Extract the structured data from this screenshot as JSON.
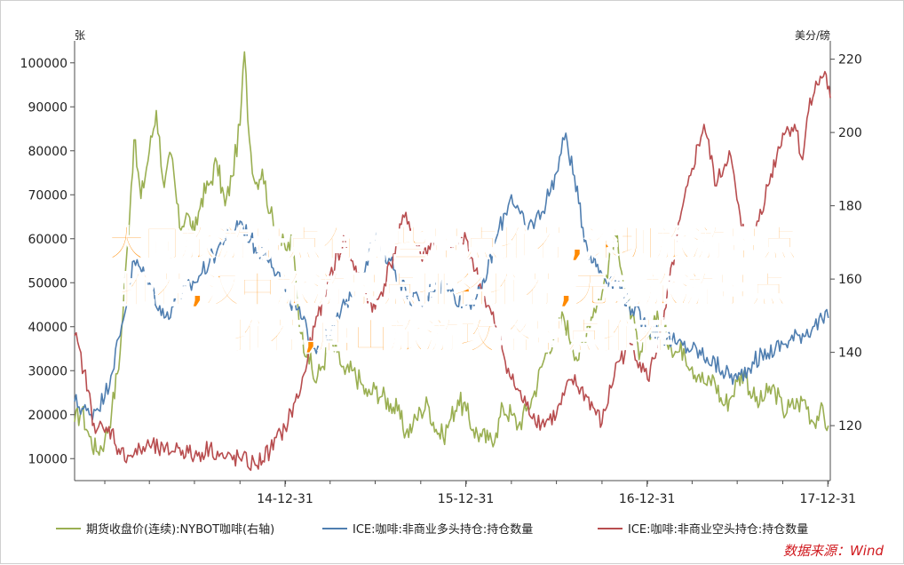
{
  "overlay_title": {
    "line1": "大同旅游景点有哪些景点推荐,深圳旅游景点",
    "line2": "推荐,汉中旅游景点排名推荐,无锡旅游景点",
    "line3": "推荐,唐山旅游攻略景点推荐"
  },
  "source_text": "数据来源：Wind",
  "colors": {
    "green": "#9aaf52",
    "blue": "#4f7eb0",
    "red": "#b84d4f",
    "axis": "#4d4d4d",
    "overlay": "#ff8a00",
    "source": "#d0191e"
  },
  "chart_data": {
    "type": "line",
    "left_axis_unit": "张",
    "right_axis_unit": "美分/磅",
    "left_ylim": [
      5000,
      105000
    ],
    "right_ylim": [
      105,
      225
    ],
    "left_ticks": [
      "100000",
      "90000",
      "80000",
      "70000",
      "60000",
      "50000",
      "40000",
      "30000",
      "20000",
      "10000"
    ],
    "right_ticks": [
      "220",
      "200",
      "180",
      "160",
      "140",
      "120"
    ],
    "x_ticks": [
      "14-12-31",
      "15-12-31",
      "16-12-31",
      "17-12-31"
    ],
    "x_range": [
      "2013-11-01",
      "2018-01-05"
    ],
    "legend_position": "bottom",
    "grid": false,
    "series": [
      {
        "name": "期货收盘价(连续):NYBOT咖啡(右轴)",
        "axis": "right",
        "color": "#9aaf52",
        "points": [
          [
            "2013-11-01",
            121
          ],
          [
            "2013-11-15",
            124
          ],
          [
            "2013-12-01",
            117
          ],
          [
            "2013-12-15",
            113
          ],
          [
            "2014-01-01",
            116
          ],
          [
            "2014-01-15",
            124
          ],
          [
            "2014-02-01",
            140
          ],
          [
            "2014-02-15",
            168
          ],
          [
            "2014-03-01",
            198
          ],
          [
            "2014-03-15",
            182
          ],
          [
            "2014-04-01",
            195
          ],
          [
            "2014-04-15",
            206
          ],
          [
            "2014-05-01",
            185
          ],
          [
            "2014-05-15",
            194
          ],
          [
            "2014-06-01",
            174
          ],
          [
            "2014-06-15",
            178
          ],
          [
            "2014-07-01",
            172
          ],
          [
            "2014-07-15",
            182
          ],
          [
            "2014-08-01",
            186
          ],
          [
            "2014-08-15",
            192
          ],
          [
            "2014-09-01",
            180
          ],
          [
            "2014-09-15",
            188
          ],
          [
            "2014-10-01",
            202
          ],
          [
            "2014-10-10",
            222
          ],
          [
            "2014-10-20",
            198
          ],
          [
            "2014-11-01",
            186
          ],
          [
            "2014-11-15",
            190
          ],
          [
            "2014-12-01",
            178
          ],
          [
            "2014-12-15",
            172
          ],
          [
            "2015-01-01",
            168
          ],
          [
            "2015-01-15",
            170
          ],
          [
            "2015-02-01",
            145
          ],
          [
            "2015-02-15",
            140
          ],
          [
            "2015-03-01",
            132
          ],
          [
            "2015-03-15",
            136
          ],
          [
            "2015-04-01",
            142
          ],
          [
            "2015-04-15",
            140
          ],
          [
            "2015-05-01",
            134
          ],
          [
            "2015-05-15",
            135
          ],
          [
            "2015-06-01",
            132
          ],
          [
            "2015-06-15",
            128
          ],
          [
            "2015-07-01",
            130
          ],
          [
            "2015-07-15",
            128
          ],
          [
            "2015-08-01",
            126
          ],
          [
            "2015-08-15",
            124
          ],
          [
            "2015-09-01",
            118
          ],
          [
            "2015-09-15",
            120
          ],
          [
            "2015-10-01",
            124
          ],
          [
            "2015-10-15",
            126
          ],
          [
            "2015-11-01",
            119
          ],
          [
            "2015-11-15",
            117
          ],
          [
            "2015-12-01",
            122
          ],
          [
            "2015-12-15",
            127
          ],
          [
            "2016-01-01",
            124
          ],
          [
            "2016-01-15",
            119
          ],
          [
            "2016-02-01",
            117
          ],
          [
            "2016-02-15",
            116
          ],
          [
            "2016-03-01",
            118
          ],
          [
            "2016-03-15",
            125
          ],
          [
            "2016-04-01",
            123
          ],
          [
            "2016-04-15",
            120
          ],
          [
            "2016-05-01",
            124
          ],
          [
            "2016-05-15",
            128
          ],
          [
            "2016-06-01",
            136
          ],
          [
            "2016-06-15",
            142
          ],
          [
            "2016-07-01",
            145
          ],
          [
            "2016-07-15",
            150
          ],
          [
            "2016-08-01",
            143
          ],
          [
            "2016-08-15",
            138
          ],
          [
            "2016-09-01",
            147
          ],
          [
            "2016-09-15",
            152
          ],
          [
            "2016-10-01",
            156
          ],
          [
            "2016-10-15",
            165
          ],
          [
            "2016-11-01",
            172
          ],
          [
            "2016-11-15",
            158
          ],
          [
            "2016-12-01",
            150
          ],
          [
            "2016-12-15",
            138
          ],
          [
            "2017-01-01",
            144
          ],
          [
            "2017-01-15",
            150
          ],
          [
            "2017-02-01",
            146
          ],
          [
            "2017-02-15",
            143
          ],
          [
            "2017-03-01",
            140
          ],
          [
            "2017-03-15",
            141
          ],
          [
            "2017-04-01",
            136
          ],
          [
            "2017-04-15",
            134
          ],
          [
            "2017-05-01",
            131
          ],
          [
            "2017-05-15",
            133
          ],
          [
            "2017-06-01",
            126
          ],
          [
            "2017-06-15",
            127
          ],
          [
            "2017-07-01",
            132
          ],
          [
            "2017-07-15",
            135
          ],
          [
            "2017-08-01",
            128
          ],
          [
            "2017-08-15",
            126
          ],
          [
            "2017-09-01",
            129
          ],
          [
            "2017-09-15",
            130
          ],
          [
            "2017-10-01",
            124
          ],
          [
            "2017-10-15",
            125
          ],
          [
            "2017-11-01",
            126
          ],
          [
            "2017-11-15",
            127
          ],
          [
            "2017-12-01",
            121
          ],
          [
            "2017-12-15",
            124
          ],
          [
            "2018-01-01",
            120
          ]
        ]
      },
      {
        "name": "ICE:咖啡:非商业多头持仓:持仓数量",
        "axis": "left",
        "color": "#4f7eb0",
        "points": [
          [
            "2013-11-01",
            23000
          ],
          [
            "2013-12-01",
            20000
          ],
          [
            "2014-01-01",
            24000
          ],
          [
            "2014-02-01",
            38000
          ],
          [
            "2014-03-01",
            55000
          ],
          [
            "2014-04-01",
            50000
          ],
          [
            "2014-05-01",
            42000
          ],
          [
            "2014-06-01",
            47000
          ],
          [
            "2014-07-01",
            50000
          ],
          [
            "2014-08-01",
            55000
          ],
          [
            "2014-09-01",
            60000
          ],
          [
            "2014-10-01",
            64000
          ],
          [
            "2014-11-01",
            58000
          ],
          [
            "2014-12-01",
            56000
          ],
          [
            "2015-01-01",
            48000
          ],
          [
            "2015-02-01",
            42000
          ],
          [
            "2015-03-01",
            35000
          ],
          [
            "2015-04-01",
            38000
          ],
          [
            "2015-05-01",
            45000
          ],
          [
            "2015-06-01",
            52000
          ],
          [
            "2015-07-01",
            60000
          ],
          [
            "2015-08-01",
            55000
          ],
          [
            "2015-09-01",
            48000
          ],
          [
            "2015-10-01",
            45000
          ],
          [
            "2015-11-01",
            50000
          ],
          [
            "2015-12-01",
            48000
          ],
          [
            "2016-01-01",
            45000
          ],
          [
            "2016-02-01",
            48000
          ],
          [
            "2016-03-01",
            60000
          ],
          [
            "2016-04-01",
            70000
          ],
          [
            "2016-05-01",
            62000
          ],
          [
            "2016-06-01",
            66000
          ],
          [
            "2016-07-01",
            75000
          ],
          [
            "2016-07-20",
            84000
          ],
          [
            "2016-08-15",
            68000
          ],
          [
            "2016-09-01",
            58000
          ],
          [
            "2016-10-01",
            52000
          ],
          [
            "2016-11-01",
            50000
          ],
          [
            "2016-12-01",
            44000
          ],
          [
            "2017-01-01",
            40000
          ],
          [
            "2017-02-01",
            38000
          ],
          [
            "2017-03-01",
            36000
          ],
          [
            "2017-04-01",
            35000
          ],
          [
            "2017-05-01",
            33000
          ],
          [
            "2017-06-01",
            30000
          ],
          [
            "2017-07-01",
            28000
          ],
          [
            "2017-08-01",
            32000
          ],
          [
            "2017-09-01",
            34000
          ],
          [
            "2017-10-01",
            36000
          ],
          [
            "2017-11-01",
            38000
          ],
          [
            "2017-12-01",
            40000
          ],
          [
            "2018-01-01",
            42000
          ]
        ]
      },
      {
        "name": "ICE:咖啡:非商业空头持仓:持仓数量",
        "axis": "left",
        "color": "#b84d4f",
        "points": [
          [
            "2013-11-01",
            38000
          ],
          [
            "2013-11-20",
            30000
          ],
          [
            "2013-12-10",
            18000
          ],
          [
            "2014-01-01",
            16000
          ],
          [
            "2014-01-15",
            16500
          ],
          [
            "2014-02-01",
            11000
          ],
          [
            "2014-03-01",
            11000
          ],
          [
            "2014-04-01",
            13000
          ],
          [
            "2014-05-01",
            11500
          ],
          [
            "2014-06-01",
            12500
          ],
          [
            "2014-07-01",
            10500
          ],
          [
            "2014-08-01",
            12500
          ],
          [
            "2014-09-01",
            10000
          ],
          [
            "2014-10-01",
            10000
          ],
          [
            "2014-11-01",
            8500
          ],
          [
            "2014-12-01",
            12000
          ],
          [
            "2014-12-31",
            17000
          ],
          [
            "2015-02-01",
            26000
          ],
          [
            "2015-03-01",
            40000
          ],
          [
            "2015-04-01",
            52000
          ],
          [
            "2015-05-01",
            60000
          ],
          [
            "2015-06-01",
            50000
          ],
          [
            "2015-07-01",
            44000
          ],
          [
            "2015-08-01",
            54000
          ],
          [
            "2015-09-01",
            66000
          ],
          [
            "2015-10-01",
            56000
          ],
          [
            "2015-11-01",
            60000
          ],
          [
            "2015-12-01",
            58000
          ],
          [
            "2016-01-01",
            60000
          ],
          [
            "2016-02-01",
            48000
          ],
          [
            "2016-03-01",
            40000
          ],
          [
            "2016-04-01",
            28000
          ],
          [
            "2016-05-01",
            22000
          ],
          [
            "2016-06-01",
            18000
          ],
          [
            "2016-07-01",
            20000
          ],
          [
            "2016-08-01",
            28000
          ],
          [
            "2016-09-01",
            24000
          ],
          [
            "2016-10-01",
            18000
          ],
          [
            "2016-11-01",
            32000
          ],
          [
            "2016-12-01",
            36000
          ],
          [
            "2017-01-01",
            28000
          ],
          [
            "2017-02-01",
            40000
          ],
          [
            "2017-03-01",
            60000
          ],
          [
            "2017-04-01",
            76000
          ],
          [
            "2017-04-25",
            86000
          ],
          [
            "2017-05-20",
            72000
          ],
          [
            "2017-06-15",
            80000
          ],
          [
            "2017-07-10",
            62000
          ],
          [
            "2017-08-01",
            60000
          ],
          [
            "2017-09-01",
            72000
          ],
          [
            "2017-10-01",
            84000
          ],
          [
            "2017-10-25",
            86000
          ],
          [
            "2017-11-10",
            78000
          ],
          [
            "2017-11-25",
            92000
          ],
          [
            "2017-12-10",
            95000
          ],
          [
            "2017-12-25",
            98000
          ],
          [
            "2018-01-05",
            92000
          ]
        ]
      }
    ]
  }
}
